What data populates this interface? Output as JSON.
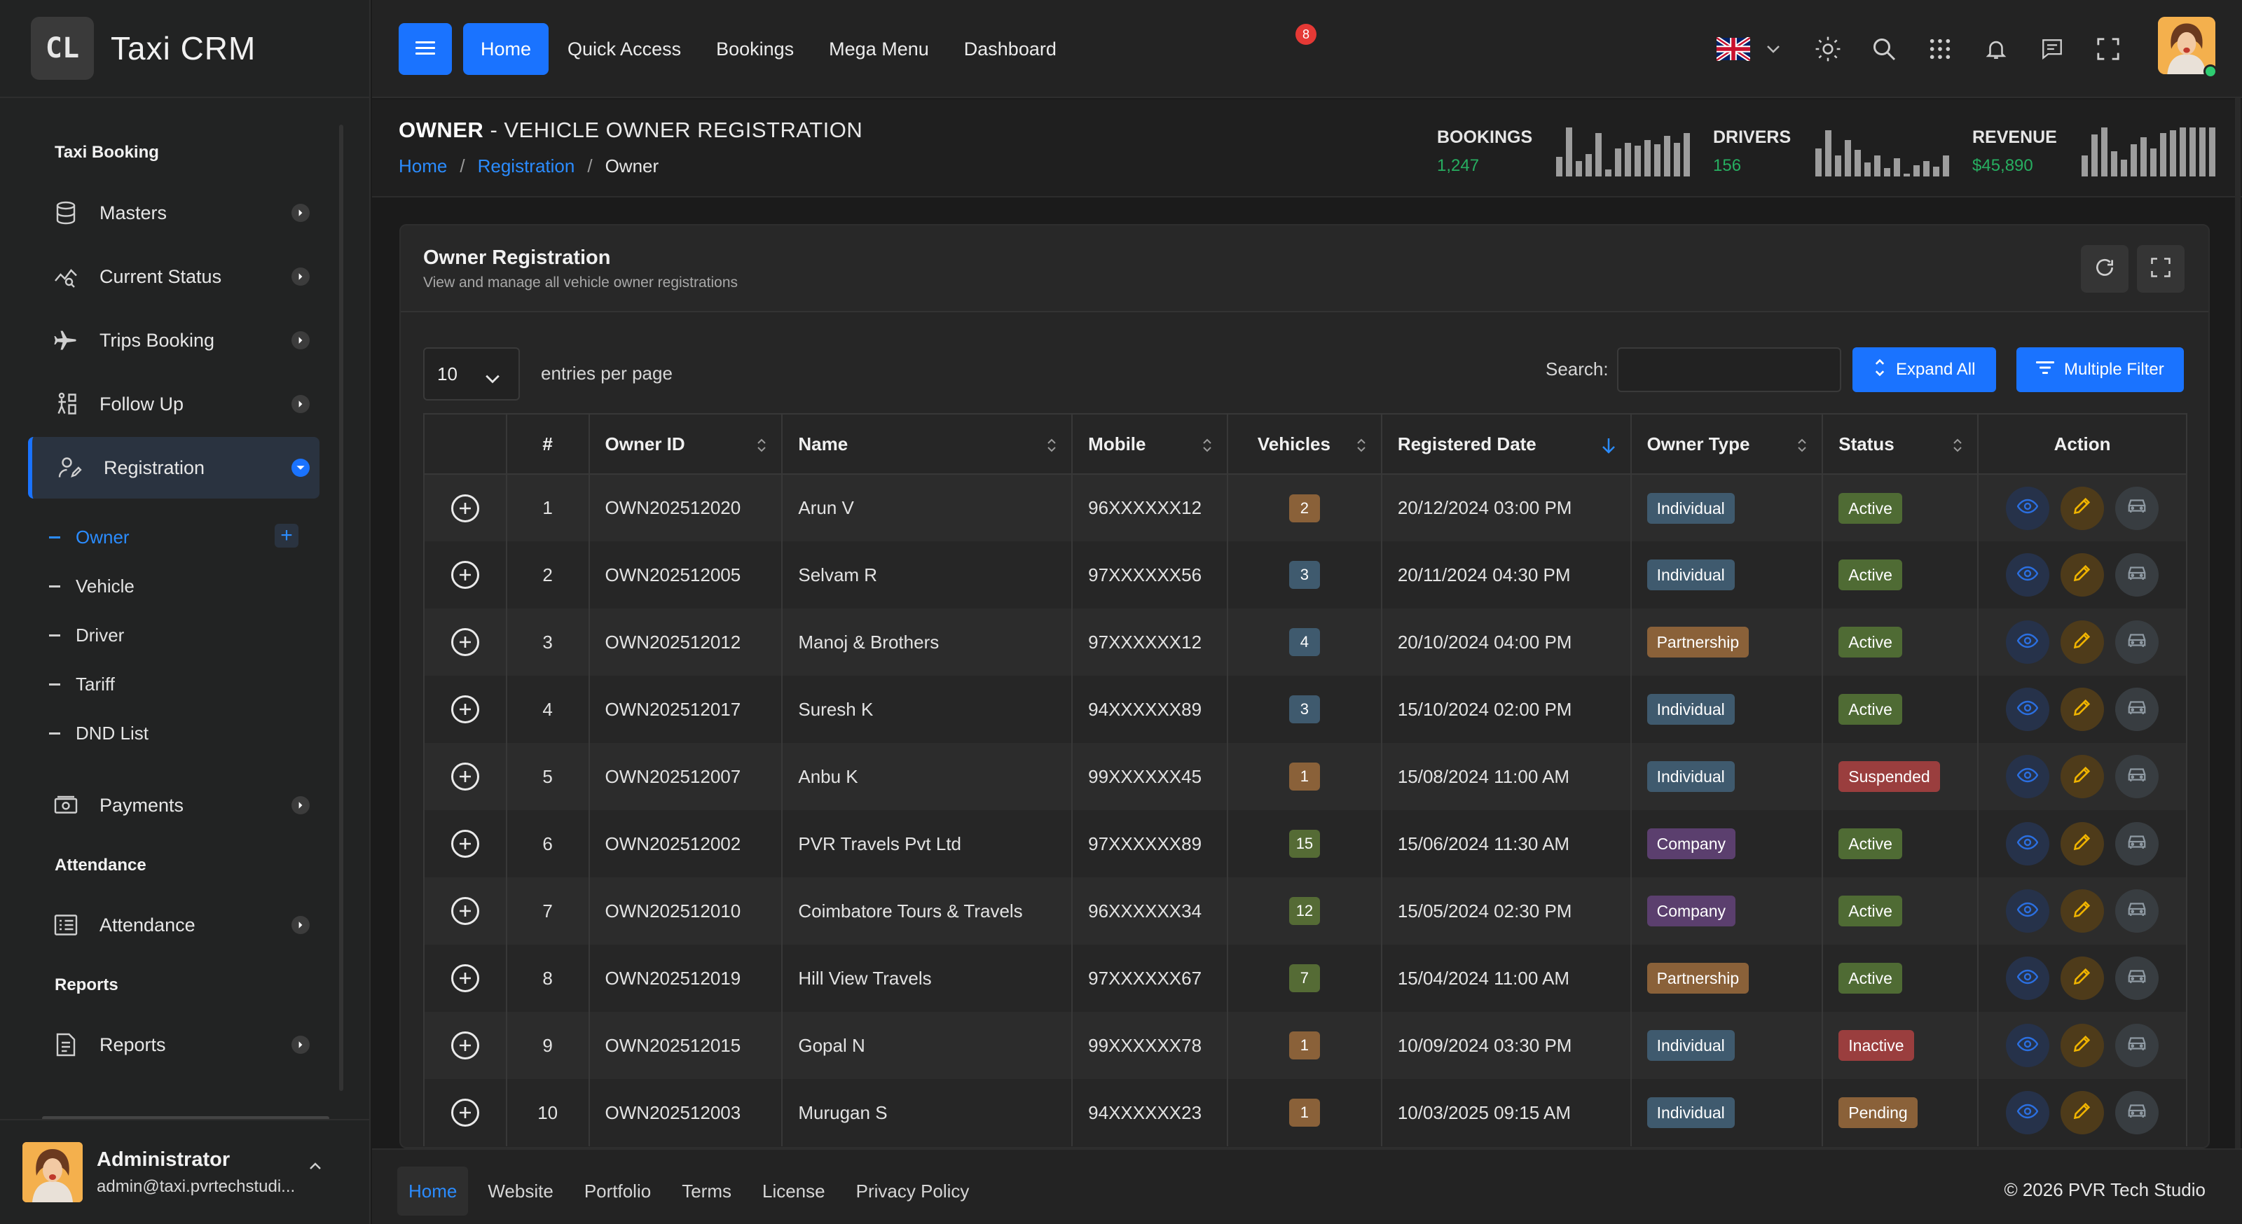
{
  "app": {
    "logo_mark": "CL",
    "title": "Taxi CRM"
  },
  "sidebar": {
    "sections": [
      {
        "title": "Taxi Booking"
      },
      {
        "title": "Attendance"
      },
      {
        "title": "Reports"
      }
    ],
    "items": [
      {
        "label": "Masters",
        "icon": "database-icon"
      },
      {
        "label": "Current Status",
        "icon": "chart-search-icon"
      },
      {
        "label": "Trips Booking",
        "icon": "plane-icon"
      },
      {
        "label": "Follow Up",
        "icon": "walk-icon"
      },
      {
        "label": "Registration",
        "icon": "user-edit-icon",
        "active": true
      },
      {
        "label": "Payments",
        "icon": "cash-icon"
      },
      {
        "label": "Attendance",
        "icon": "calendar-list-icon"
      },
      {
        "label": "Reports",
        "icon": "document-icon"
      }
    ],
    "sub_items": [
      {
        "label": "Owner",
        "active": true
      },
      {
        "label": "Vehicle"
      },
      {
        "label": "Driver"
      },
      {
        "label": "Tariff"
      },
      {
        "label": "DND List"
      }
    ],
    "user": {
      "name": "Administrator",
      "email": "admin@taxi.pvrtechstudi..."
    }
  },
  "header": {
    "nav": [
      "Home",
      "Quick Access",
      "Bookings",
      "Mega Menu",
      "Dashboard"
    ],
    "active_nav": "Home",
    "notification_count": "8",
    "icons": [
      "uk-flag-icon",
      "sun-icon",
      "search-icon",
      "apps-grid-icon",
      "bell-icon",
      "chat-icon",
      "fullscreen-icon"
    ]
  },
  "page": {
    "title_bold": "OWNER",
    "title_rest": " - VEHICLE OWNER REGISTRATION",
    "breadcrumb": [
      "Home",
      "Registration",
      "Owner"
    ],
    "stats": [
      {
        "label": "BOOKINGS",
        "value": "1,247"
      },
      {
        "label": "DRIVERS",
        "value": "156"
      },
      {
        "label": "REVENUE",
        "value": "$45,890"
      }
    ]
  },
  "card": {
    "title": "Owner Registration",
    "subtitle": "View and manage all vehicle owner registrations",
    "entries_value": "10",
    "entries_label": "entries per page",
    "search_label": "Search:",
    "search_value": "",
    "expand_all": "Expand All",
    "multiple_filter": "Multiple Filter"
  },
  "table": {
    "columns": [
      "",
      "#",
      "Owner ID",
      "Name",
      "Mobile",
      "Vehicles",
      "Registered Date",
      "Owner Type",
      "Status",
      "Action"
    ],
    "rows": [
      {
        "n": "1",
        "id": "OWN202512020",
        "name": "Arun V",
        "mobile": "96XXXXXX12",
        "vehicles": "2",
        "date": "20/12/2024 03:00 PM",
        "type": "Individual",
        "status": "Active"
      },
      {
        "n": "2",
        "id": "OWN202512005",
        "name": "Selvam R",
        "mobile": "97XXXXXX56",
        "vehicles": "3",
        "date": "20/11/2024 04:30 PM",
        "type": "Individual",
        "status": "Active"
      },
      {
        "n": "3",
        "id": "OWN202512012",
        "name": "Manoj & Brothers",
        "mobile": "97XXXXXX12",
        "vehicles": "4",
        "date": "20/10/2024 04:00 PM",
        "type": "Partnership",
        "status": "Active"
      },
      {
        "n": "4",
        "id": "OWN202512017",
        "name": "Suresh K",
        "mobile": "94XXXXXX89",
        "vehicles": "3",
        "date": "15/10/2024 02:00 PM",
        "type": "Individual",
        "status": "Active"
      },
      {
        "n": "5",
        "id": "OWN202512007",
        "name": "Anbu K",
        "mobile": "99XXXXXX45",
        "vehicles": "1",
        "date": "15/08/2024 11:00 AM",
        "type": "Individual",
        "status": "Suspended"
      },
      {
        "n": "6",
        "id": "OWN202512002",
        "name": "PVR Travels Pvt Ltd",
        "mobile": "97XXXXXX89",
        "vehicles": "15",
        "date": "15/06/2024 11:30 AM",
        "type": "Company",
        "status": "Active"
      },
      {
        "n": "7",
        "id": "OWN202512010",
        "name": "Coimbatore Tours & Travels",
        "mobile": "96XXXXXX34",
        "vehicles": "12",
        "date": "15/05/2024 02:30 PM",
        "type": "Company",
        "status": "Active"
      },
      {
        "n": "8",
        "id": "OWN202512019",
        "name": "Hill View Travels",
        "mobile": "97XXXXXX67",
        "vehicles": "7",
        "date": "15/04/2024 11:00 AM",
        "type": "Partnership",
        "status": "Active"
      },
      {
        "n": "9",
        "id": "OWN202512015",
        "name": "Gopal N",
        "mobile": "99XXXXXX78",
        "vehicles": "1",
        "date": "10/09/2024 03:30 PM",
        "type": "Individual",
        "status": "Inactive"
      },
      {
        "n": "10",
        "id": "OWN202512003",
        "name": "Murugan S",
        "mobile": "94XXXXXX23",
        "vehicles": "1",
        "date": "10/03/2025 09:15 AM",
        "type": "Individual",
        "status": "Pending"
      }
    ]
  },
  "colors": {
    "accent": "#1a73ff",
    "type": {
      "Individual": "#3f5a6e",
      "Partnership": "#8a6139",
      "Company": "#5b3f6e"
    },
    "status": {
      "Active": "#4f6b34",
      "Suspended": "#9a3e3e",
      "Inactive": "#9a3e3e",
      "Pending": "#8a6139"
    },
    "vehicles": {
      "low": "#8a6139",
      "mid": "#3f5a6e",
      "high": "#556b35"
    }
  },
  "footer": {
    "links": [
      "Home",
      "Website",
      "Portfolio",
      "Terms",
      "License",
      "Privacy Policy"
    ],
    "copyright": "© 2026  PVR Tech Studio"
  }
}
